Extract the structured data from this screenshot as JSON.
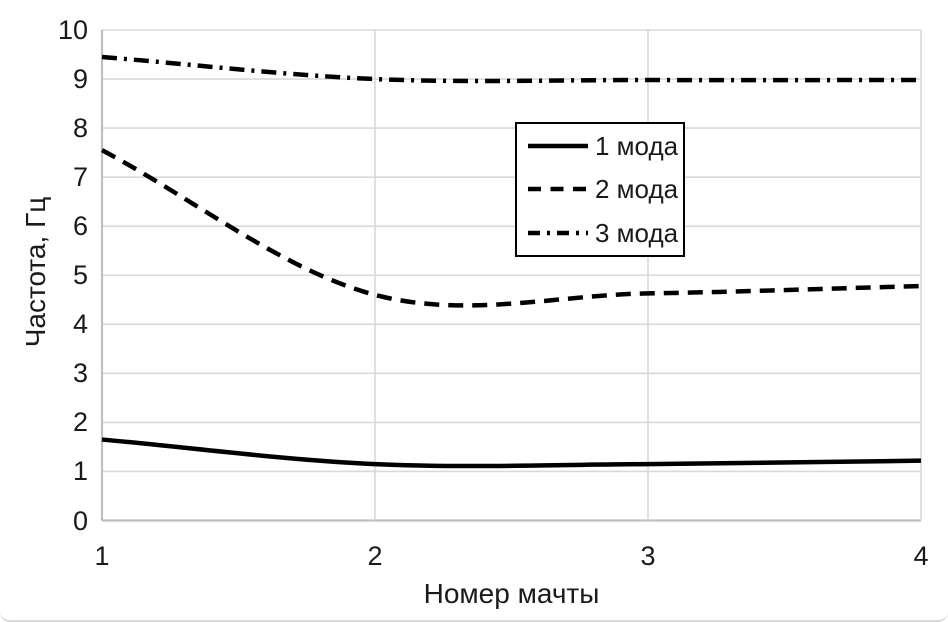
{
  "chart_data": {
    "type": "line",
    "smooth": true,
    "title": "",
    "xlabel": "Номер мачты",
    "ylabel": "Частота, Гц",
    "x": [
      1,
      2,
      3,
      4
    ],
    "xlim": [
      1,
      4
    ],
    "ylim": [
      0,
      10
    ],
    "xticks": [
      "1",
      "2",
      "3",
      "4"
    ],
    "yticks": [
      "0",
      "1",
      "2",
      "3",
      "4",
      "5",
      "6",
      "7",
      "8",
      "9",
      "10"
    ],
    "grid": true,
    "legend": {
      "position": "inside-top-center",
      "border": true,
      "entries": [
        "1 мода",
        "2 мода",
        "3 мода"
      ]
    },
    "series": [
      {
        "name": "1 мода",
        "style": "solid",
        "color": "#000000",
        "values": [
          1.65,
          1.15,
          1.15,
          1.22
        ]
      },
      {
        "name": "2 мода",
        "style": "dashed",
        "color": "#000000",
        "values": [
          7.55,
          4.6,
          4.63,
          4.78
        ]
      },
      {
        "name": "3 мода",
        "style": "dashdot",
        "color": "#000000",
        "values": [
          9.45,
          9.0,
          8.98,
          8.98
        ]
      }
    ],
    "colors": {
      "series_line": "#000000",
      "gridline": "#d9d9d9",
      "axis_line": "#bfbfbf",
      "text": "#1a1a1a",
      "background": "#ffffff",
      "legend_border": "#000000"
    }
  }
}
